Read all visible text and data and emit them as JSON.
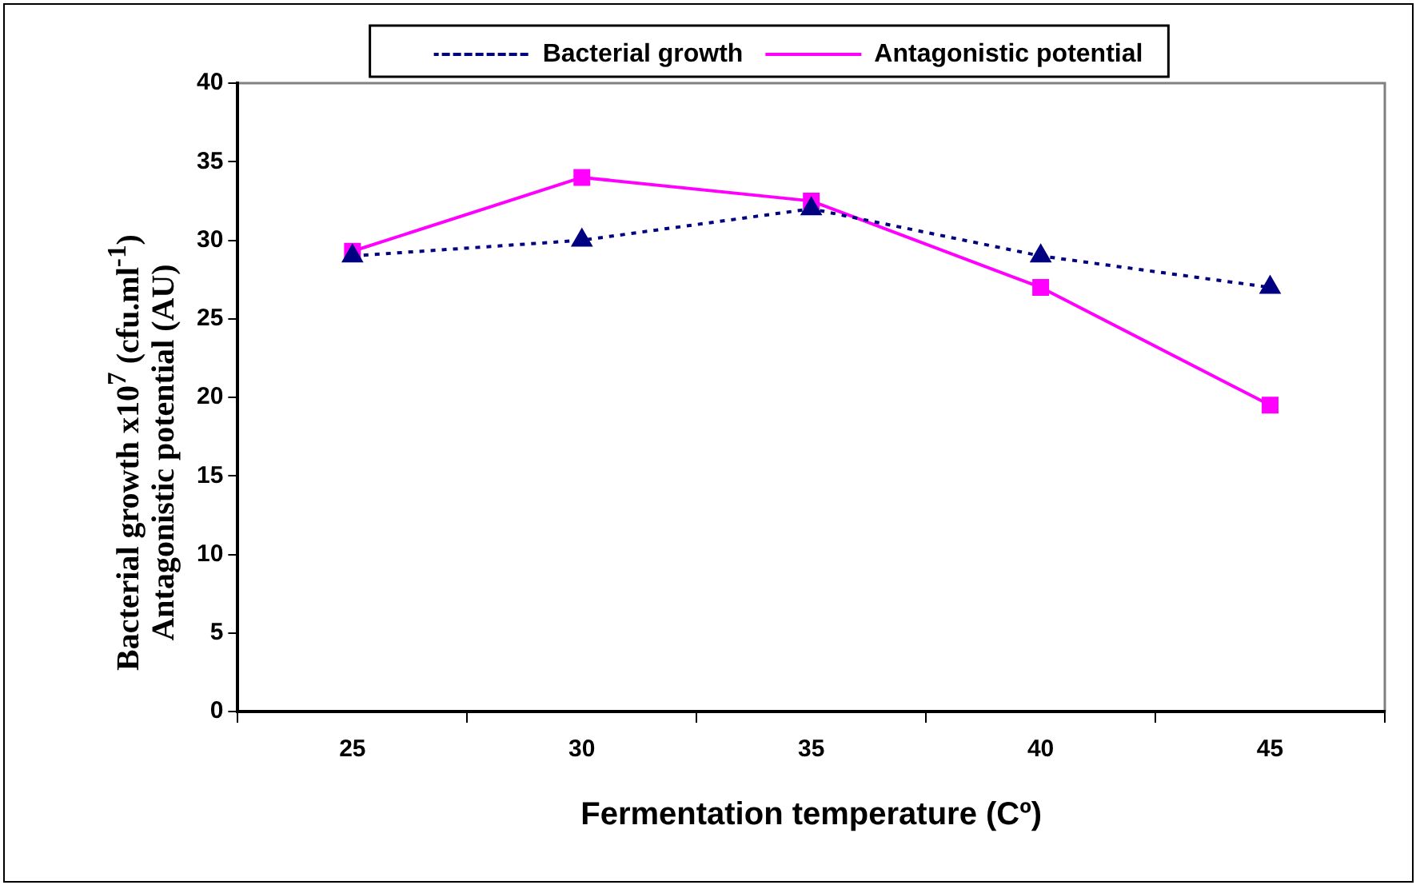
{
  "chart_data": {
    "type": "line",
    "xlabel": "Fermentation temperature (Cº)",
    "ylabel": "Bacterial growth x10$^{7}$ (cfu.ml$^{-1}$)\nAntagonistic potential (AU)",
    "categories": [
      "25",
      "30",
      "35",
      "40",
      "45"
    ],
    "series": [
      {
        "name": "Bacterial growth",
        "color": "#000080",
        "values": [
          29,
          30,
          32,
          29,
          27
        ],
        "marker": "triangle",
        "line_style": "dotted"
      },
      {
        "name": "Antagonistic potential",
        "color": "#ff00ff",
        "values": [
          29.3,
          34,
          32.5,
          27,
          19.5
        ],
        "marker": "square",
        "line_style": "solid"
      }
    ],
    "ylim": [
      0,
      40
    ],
    "yticks": [
      0,
      5,
      10,
      15,
      20,
      25,
      30,
      35,
      40
    ],
    "grid": false,
    "legend": "top"
  }
}
